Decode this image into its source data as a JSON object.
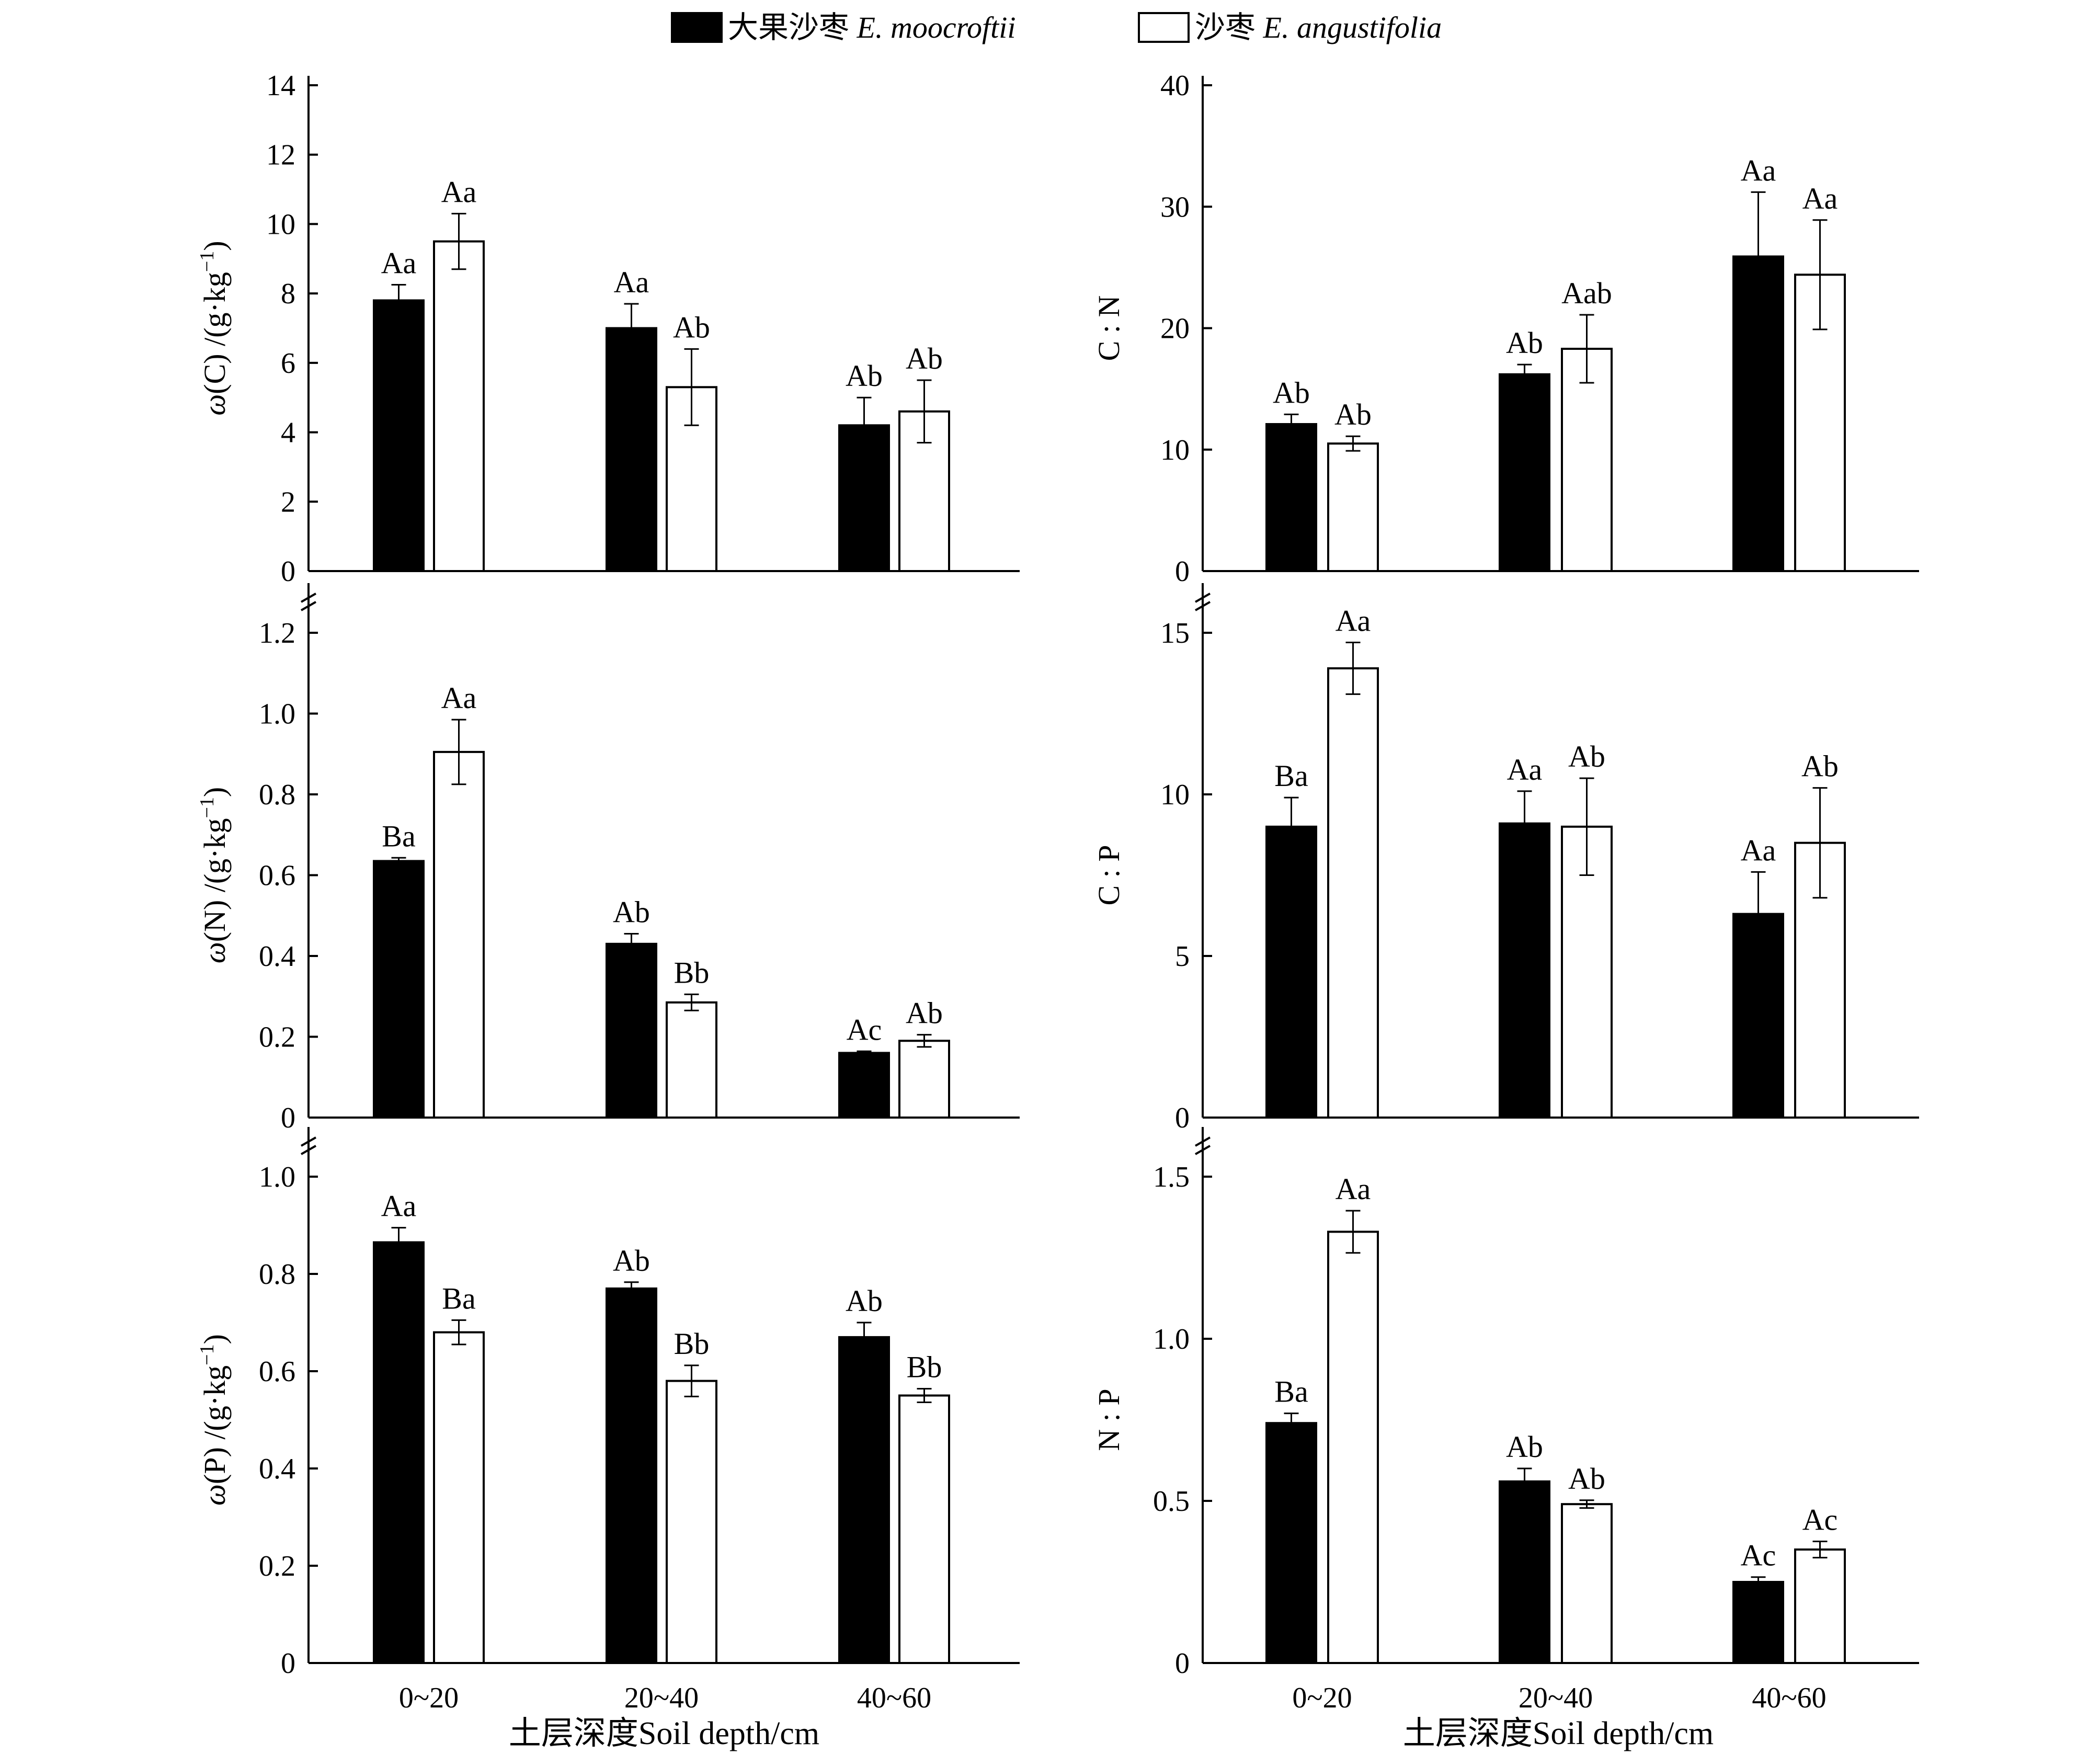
{
  "legend": {
    "moocroftii_cn": "大果沙枣",
    "moocroftii_sp": "E. moocroftii",
    "angustifolia_cn": "沙枣",
    "angustifolia_sp": "E. angustifolia"
  },
  "xlabel_left": "土层深度Soil depth/cm",
  "xlabel_right": "土层深度Soil depth/cm",
  "chart_data": [
    {
      "type": "bar",
      "panel": "C",
      "ylabel_prefix": "ω(C) /(g·kg",
      "ylabel_sup": "−1",
      "ylabel_suffix": ")",
      "categories": [
        "0~20",
        "20~40",
        "40~60"
      ],
      "ylim": [
        0,
        14
      ],
      "yticks": [
        "0",
        "2",
        "4",
        "6",
        "8",
        "10",
        "12",
        "14"
      ],
      "ytick_values": [
        0,
        2,
        4,
        6,
        8,
        10,
        12,
        14
      ],
      "x_break": true,
      "series": [
        {
          "name": "E. moocroftii",
          "values": [
            7.8,
            7.0,
            4.2
          ],
          "errors": [
            0.45,
            0.7,
            0.8
          ],
          "labels": [
            "Aa",
            "Aa",
            "Ab"
          ]
        },
        {
          "name": "E. angustifolia",
          "values": [
            9.5,
            5.3,
            4.6
          ],
          "errors": [
            0.8,
            1.1,
            0.9
          ],
          "labels": [
            "Aa",
            "Ab",
            "Ab"
          ]
        }
      ]
    },
    {
      "type": "bar",
      "panel": "N",
      "ylabel_prefix": "ω(N) /(g·kg",
      "ylabel_sup": "−1",
      "ylabel_suffix": ")",
      "categories": [
        "0~20",
        "20~40",
        "40~60"
      ],
      "ylim": [
        0,
        1.2
      ],
      "yticks": [
        "0",
        "0.2",
        "0.4",
        "0.6",
        "0.8",
        "1.0",
        "1.2"
      ],
      "ytick_values": [
        0,
        0.2,
        0.4,
        0.6,
        0.8,
        1.0,
        1.2
      ],
      "x_break": true,
      "series": [
        {
          "name": "E. moocroftii",
          "values": [
            0.635,
            0.43,
            0.16
          ],
          "errors": [
            0.008,
            0.025,
            0.004
          ],
          "labels": [
            "Ba",
            "Ab",
            "Ac"
          ]
        },
        {
          "name": "E. angustifolia",
          "values": [
            0.905,
            0.285,
            0.19
          ],
          "errors": [
            0.08,
            0.02,
            0.015
          ],
          "labels": [
            "Aa",
            "Bb",
            "Ab"
          ]
        }
      ]
    },
    {
      "type": "bar",
      "panel": "P",
      "ylabel_prefix": "ω(P) /(g·kg",
      "ylabel_sup": "−1",
      "ylabel_suffix": ")",
      "categories": [
        "0~20",
        "20~40",
        "40~60"
      ],
      "ylim": [
        0,
        1.0
      ],
      "yticks": [
        "0",
        "0.2",
        "0.4",
        "0.6",
        "0.8",
        "1.0"
      ],
      "ytick_values": [
        0,
        0.2,
        0.4,
        0.6,
        0.8,
        1.0
      ],
      "x_break": false,
      "series": [
        {
          "name": "E. moocroftii",
          "values": [
            0.865,
            0.77,
            0.67
          ],
          "errors": [
            0.03,
            0.013,
            0.03
          ],
          "labels": [
            "Aa",
            "Ab",
            "Ab"
          ]
        },
        {
          "name": "E. angustifolia",
          "values": [
            0.68,
            0.58,
            0.55
          ],
          "errors": [
            0.025,
            0.032,
            0.014
          ],
          "labels": [
            "Ba",
            "Bb",
            "Bb"
          ]
        }
      ]
    },
    {
      "type": "bar",
      "panel": "C:N",
      "ylabel_prefix": "C : N",
      "ylabel_sup": "",
      "ylabel_suffix": "",
      "categories": [
        "0~20",
        "20~40",
        "40~60"
      ],
      "ylim": [
        0,
        40
      ],
      "yticks": [
        "0",
        "10",
        "20",
        "30",
        "40"
      ],
      "ytick_values": [
        0,
        10,
        20,
        30,
        40
      ],
      "x_break": true,
      "series": [
        {
          "name": "E. moocroftii",
          "values": [
            12.1,
            16.2,
            25.9
          ],
          "errors": [
            0.8,
            0.8,
            5.3
          ],
          "labels": [
            "Ab",
            "Ab",
            "Aa"
          ]
        },
        {
          "name": "E. angustifolia",
          "values": [
            10.5,
            18.3,
            24.4
          ],
          "errors": [
            0.6,
            2.8,
            4.5
          ],
          "labels": [
            "Ab",
            "Aab",
            "Aa"
          ]
        }
      ]
    },
    {
      "type": "bar",
      "panel": "C:P",
      "ylabel_prefix": "C : P",
      "ylabel_sup": "",
      "ylabel_suffix": "",
      "categories": [
        "0~20",
        "20~40",
        "40~60"
      ],
      "ylim": [
        0,
        15
      ],
      "yticks": [
        "0",
        "5",
        "10",
        "15"
      ],
      "ytick_values": [
        0,
        5,
        10,
        15
      ],
      "x_break": true,
      "series": [
        {
          "name": "E. moocroftii",
          "values": [
            9.0,
            9.1,
            6.3
          ],
          "errors": [
            0.9,
            1.0,
            1.3
          ],
          "labels": [
            "Ba",
            "Aa",
            "Aa"
          ]
        },
        {
          "name": "E. angustifolia",
          "values": [
            13.9,
            9.0,
            8.5
          ],
          "errors": [
            0.8,
            1.5,
            1.7
          ],
          "labels": [
            "Aa",
            "Ab",
            "Ab"
          ]
        }
      ]
    },
    {
      "type": "bar",
      "panel": "N:P",
      "ylabel_prefix": "N : P",
      "ylabel_sup": "",
      "ylabel_suffix": "",
      "categories": [
        "0~20",
        "20~40",
        "40~60"
      ],
      "ylim": [
        0,
        1.5
      ],
      "yticks": [
        "0",
        "0.5",
        "1.0",
        "1.5"
      ],
      "ytick_values": [
        0,
        0.5,
        1.0,
        1.5
      ],
      "x_break": false,
      "series": [
        {
          "name": "E. moocroftii",
          "values": [
            0.74,
            0.56,
            0.25
          ],
          "errors": [
            0.03,
            0.04,
            0.015
          ],
          "labels": [
            "Ba",
            "Ab",
            "Ac"
          ]
        },
        {
          "name": "E. angustifolia",
          "values": [
            1.33,
            0.49,
            0.35
          ],
          "errors": [
            0.065,
            0.012,
            0.025
          ],
          "labels": [
            "Aa",
            "Ab",
            "Ac"
          ]
        }
      ]
    }
  ]
}
